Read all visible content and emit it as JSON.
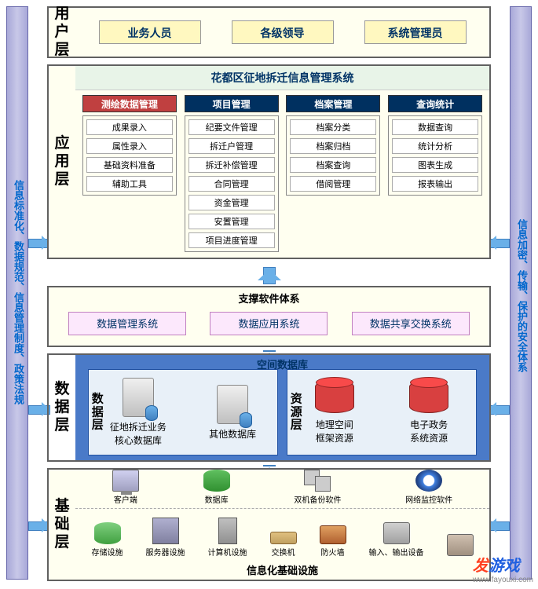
{
  "pillars": {
    "left": "信息标准化、数据规范、信息管理制度、政策法规",
    "right": "信息加密、传输、保护的安全体系"
  },
  "user_layer": {
    "label": "用户层",
    "roles": [
      "业务人员",
      "各级领导",
      "系统管理员"
    ]
  },
  "app_layer": {
    "label": "应用层",
    "title": "花都区征地拆迁信息管理系统",
    "columns": [
      {
        "head": "测绘数据管理",
        "color": "#c04040",
        "items": [
          "成果录入",
          "属性录入",
          "基础资料准备",
          "辅助工具"
        ]
      },
      {
        "head": "项目管理",
        "color": "#003060",
        "items": [
          "纪要文件管理",
          "拆迁户管理",
          "拆迁补偿管理",
          "合同管理",
          "资金管理",
          "安置管理",
          "项目进度管理"
        ]
      },
      {
        "head": "档案管理",
        "color": "#003060",
        "items": [
          "档案分类",
          "档案归档",
          "档案查询",
          "借阅管理"
        ]
      },
      {
        "head": "查询统计",
        "color": "#003060",
        "items": [
          "数据查询",
          "统计分析",
          "图表生成",
          "报表输出"
        ]
      }
    ]
  },
  "support_layer": {
    "title": "支撑软件体系",
    "items": [
      "数据管理系统",
      "数据应用系统",
      "数据共享交换系统"
    ]
  },
  "data_layer": {
    "label": "数据层",
    "spatial_title": "空间数据库",
    "left": {
      "sublabel": "数据层",
      "items": [
        {
          "icon": "server",
          "label": "征地拆迁业务\n核心数据库"
        },
        {
          "icon": "server",
          "label": "其他数据库"
        }
      ]
    },
    "right": {
      "sublabel": "资源层",
      "items": [
        {
          "icon": "cylinder",
          "color": "#d84040",
          "label": "地理空间\n框架资源"
        },
        {
          "icon": "cylinder",
          "color": "#d84040",
          "label": "电子政务\n系统资源"
        }
      ]
    }
  },
  "infra_layer": {
    "label": "基础层",
    "top_items": [
      {
        "icon": "ic-pc",
        "label": "客户端"
      },
      {
        "icon": "ic-db",
        "label": "数据库"
      },
      {
        "icon": "ic-dual",
        "label": "双机备份软件"
      },
      {
        "icon": "ic-eye",
        "label": "网络监控软件"
      }
    ],
    "bottom_items": [
      {
        "icon": "ic-cyl",
        "label": "存储设施"
      },
      {
        "icon": "ic-cabinet",
        "label": "服务器设施"
      },
      {
        "icon": "ic-tower",
        "label": "计算机设施"
      },
      {
        "icon": "ic-switch",
        "label": "交换机"
      },
      {
        "icon": "ic-fire",
        "label": "防火墙"
      },
      {
        "icon": "ic-printer",
        "label": "输入、输出设备"
      },
      {
        "icon": "ic-scanner",
        "label": ""
      }
    ],
    "title": "信息化基础设施"
  },
  "watermark": {
    "fa": "发",
    "yx": "游戏",
    "url": "www.fayouxi.com"
  },
  "colors": {
    "pillar_fill": "#b8b8e0",
    "arrow_fill": "#6ab0e8",
    "data_bg": "#4a7ac8",
    "role_bg": "#fff8c0",
    "support_box_bg": "#fce8fc"
  }
}
